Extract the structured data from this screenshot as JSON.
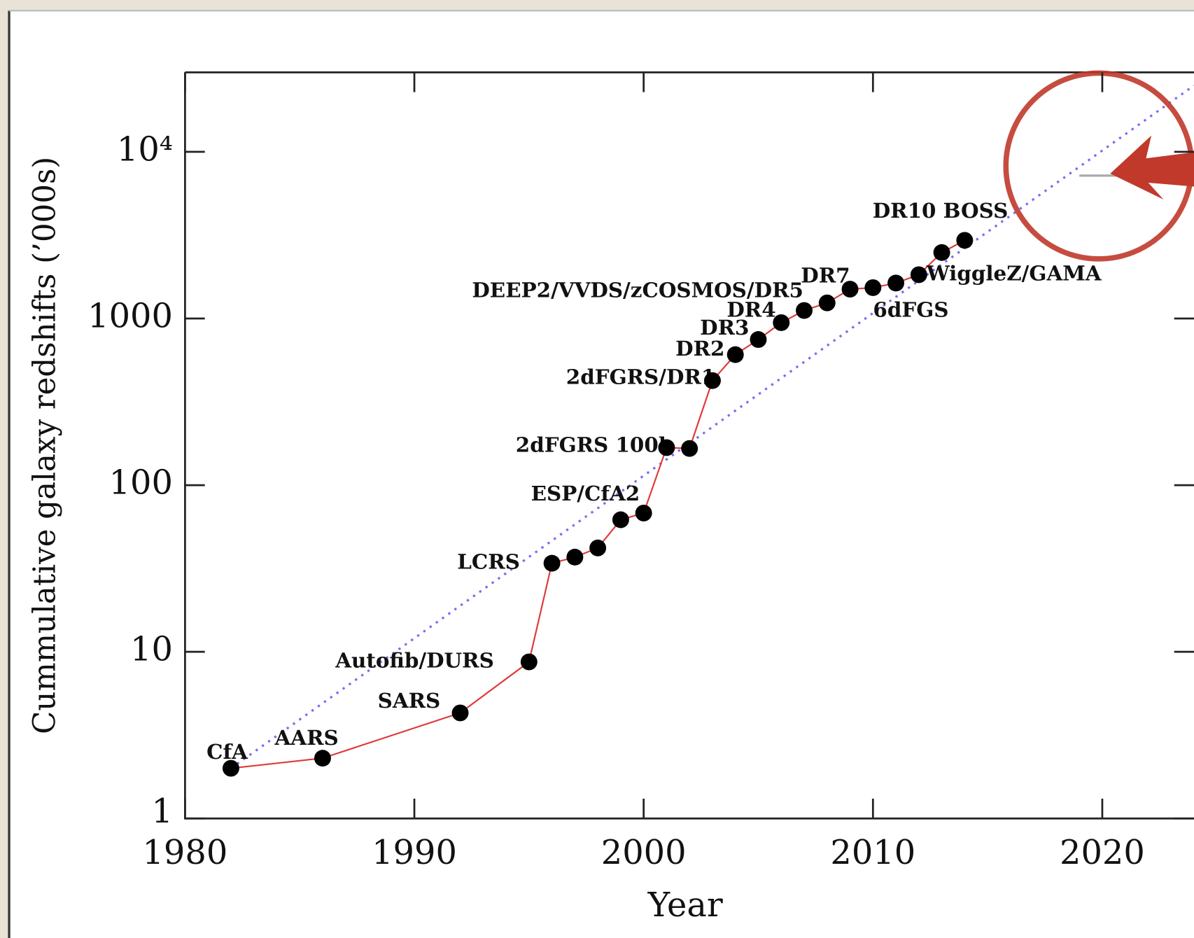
{
  "chart_data": {
    "type": "line",
    "x_label": "Year",
    "y_label": "Cummulative galaxy redshifts (’000s)",
    "y_scale": "log",
    "x": [
      1982,
      1986,
      1992,
      1995,
      1996,
      1997,
      1998,
      1999,
      2000,
      2001,
      2002,
      2003,
      2004,
      2005,
      2006,
      2007,
      2008,
      2009,
      2010,
      2011,
      2012,
      2013,
      2014
    ],
    "values": [
      2.0,
      2.3,
      4.3,
      8.7,
      34,
      37,
      42,
      62,
      68,
      168,
      166,
      424,
      607,
      748,
      944,
      1117,
      1241,
      1500,
      1531,
      1632,
      1832,
      2488,
      2944
    ],
    "point_labels": [
      "CfA",
      "AARS",
      "SARS",
      "Autofib/DURS",
      "LCRS",
      null,
      null,
      null,
      "ESP/CfA2",
      "2dFGRS 100k",
      null,
      "2dFGRS/DR1",
      "DR2",
      "DR3",
      "DR4",
      "DEEP2/VVDS/zCOSMOS/DR5",
      null,
      "DR7",
      null,
      "6dFGS",
      "WiggleZ/GAMA",
      null,
      "DR10 BOSS"
    ],
    "color": "#e03a3a",
    "marker_color": "#000000",
    "trend": {
      "x": [
        1982,
        2024
      ],
      "values": [
        2.0,
        25000
      ],
      "color": "#7b6cf0"
    },
    "hline": {
      "value": 7200,
      "x": [
        2019,
        2024
      ],
      "color": "#aaaaaa"
    },
    "xlim": [
      1980,
      2024
    ],
    "ylim": [
      1,
      30000
    ],
    "xticks": [
      1980,
      1990,
      2000,
      2010,
      2020
    ],
    "yticks": [
      1,
      10,
      100,
      1000,
      {
        "value": 10000,
        "label": "10⁴"
      }
    ]
  }
}
